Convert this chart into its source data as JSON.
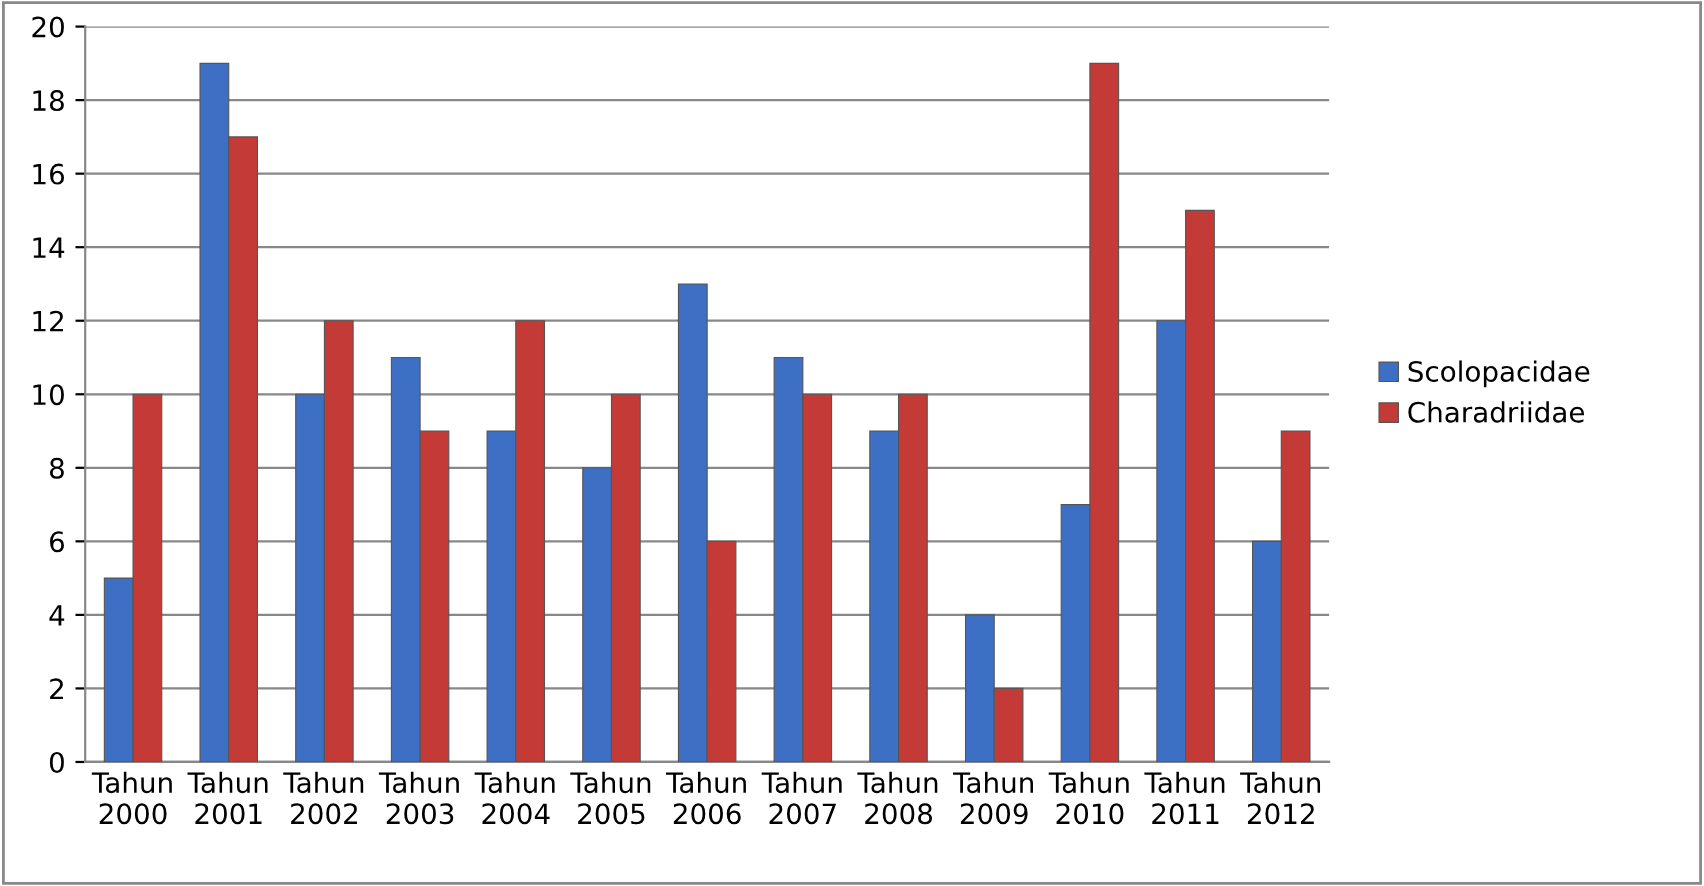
{
  "chart_data": {
    "type": "bar",
    "categories": [
      "Tahun\n2000",
      "Tahun\n2001",
      "Tahun\n2002",
      "Tahun\n2003",
      "Tahun\n2004",
      "Tahun\n2005",
      "Tahun\n2006",
      "Tahun\n2007",
      "Tahun\n2008",
      "Tahun\n2009",
      "Tahun\n2010",
      "Tahun\n2011",
      "Tahun\n2012"
    ],
    "series": [
      {
        "name": "Scolopacidae",
        "color": "#3d6fc4",
        "values": [
          5,
          19,
          10,
          11,
          9,
          8,
          13,
          11,
          9,
          4,
          7,
          12,
          6
        ]
      },
      {
        "name": "Charadriidae",
        "color": "#c43a36",
        "values": [
          10,
          17,
          12,
          9,
          12,
          10,
          6,
          10,
          10,
          2,
          19,
          15,
          9
        ]
      }
    ],
    "ylim": [
      0,
      20
    ],
    "yticks": [
      0,
      2,
      4,
      6,
      8,
      10,
      12,
      14,
      16,
      18,
      20
    ],
    "grid": "y",
    "legend": "right"
  }
}
